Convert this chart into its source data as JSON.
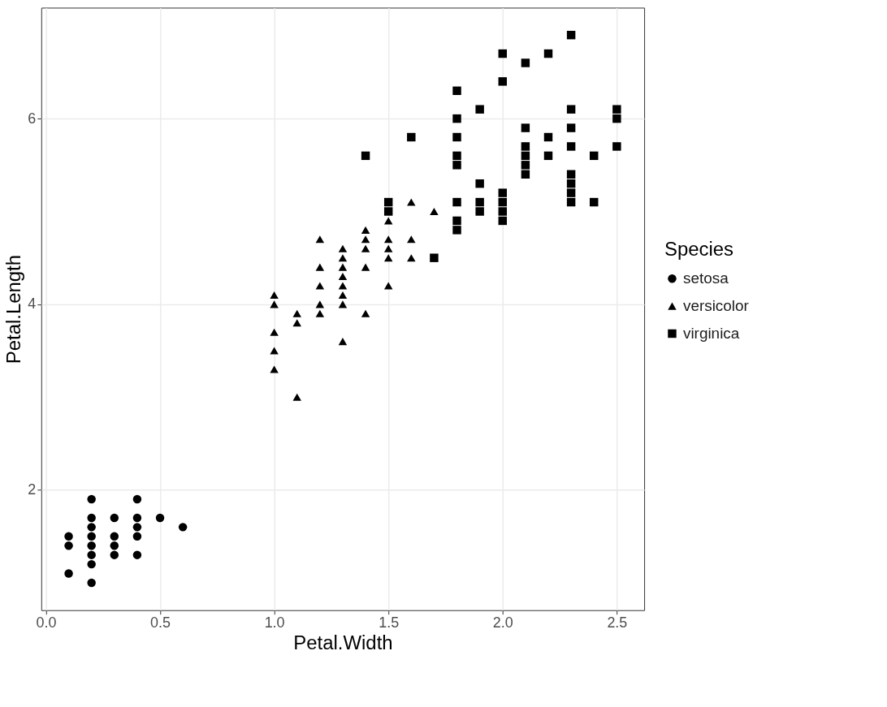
{
  "chart_data": {
    "type": "scatter",
    "xlabel": "Petal.Width",
    "ylabel": "Petal.Length",
    "legend_title": "Species",
    "legend": "right",
    "grid": true,
    "xlim": [
      -0.02,
      2.62
    ],
    "ylim": [
      0.705,
      7.195
    ],
    "xticks": [
      {
        "value": 0,
        "label": "0.0"
      },
      0.5,
      {
        "value": 1,
        "label": "1.0"
      },
      1.5,
      {
        "value": 2,
        "label": "2.0"
      },
      2.5
    ],
    "yticks": [
      2,
      4,
      6
    ],
    "series": [
      {
        "name": "setosa",
        "color": "#000000",
        "marker": "circle",
        "x": [
          0.1,
          0.1,
          0.1,
          0.2,
          0.2,
          0.2,
          0.2,
          0.2,
          0.2,
          0.2,
          0.2,
          0.3,
          0.3,
          0.3,
          0.3,
          0.4,
          0.4,
          0.4,
          0.4,
          0.4,
          0.5,
          0.6
        ],
        "values": [
          1.1,
          1.4,
          1.5,
          1.0,
          1.2,
          1.3,
          1.4,
          1.5,
          1.6,
          1.7,
          1.9,
          1.3,
          1.4,
          1.5,
          1.7,
          1.3,
          1.5,
          1.6,
          1.7,
          1.9,
          1.7,
          1.6
        ]
      },
      {
        "name": "versicolor",
        "color": "#000000",
        "marker": "triangle",
        "x": [
          1.0,
          1.0,
          1.0,
          1.0,
          1.0,
          1.1,
          1.1,
          1.1,
          1.2,
          1.2,
          1.2,
          1.2,
          1.2,
          1.3,
          1.3,
          1.3,
          1.3,
          1.3,
          1.3,
          1.3,
          1.3,
          1.4,
          1.4,
          1.4,
          1.4,
          1.4,
          1.5,
          1.5,
          1.5,
          1.5,
          1.5,
          1.6,
          1.6,
          1.6,
          1.7
        ],
        "values": [
          3.3,
          3.5,
          3.7,
          4.0,
          4.1,
          3.0,
          3.8,
          3.9,
          3.9,
          4.0,
          4.2,
          4.4,
          4.7,
          3.6,
          4.0,
          4.1,
          4.2,
          4.3,
          4.4,
          4.5,
          4.6,
          3.9,
          4.4,
          4.6,
          4.7,
          4.8,
          4.2,
          4.5,
          4.6,
          4.7,
          4.9,
          4.5,
          4.7,
          5.1,
          5.0
        ]
      },
      {
        "name": "virginica",
        "color": "#000000",
        "marker": "square",
        "x": [
          1.4,
          1.5,
          1.5,
          1.6,
          1.7,
          1.8,
          1.8,
          1.8,
          1.8,
          1.8,
          1.8,
          1.8,
          1.8,
          1.9,
          1.9,
          1.9,
          1.9,
          2.0,
          2.0,
          2.0,
          2.0,
          2.0,
          2.0,
          2.1,
          2.1,
          2.1,
          2.1,
          2.1,
          2.1,
          2.2,
          2.2,
          2.2,
          2.3,
          2.3,
          2.3,
          2.3,
          2.3,
          2.3,
          2.3,
          2.3,
          2.4,
          2.4,
          2.5,
          2.5,
          2.5
        ],
        "values": [
          5.6,
          5.0,
          5.1,
          5.8,
          4.5,
          4.8,
          4.9,
          5.1,
          5.5,
          5.6,
          5.8,
          6.0,
          6.3,
          5.0,
          5.1,
          5.3,
          6.1,
          4.9,
          5.0,
          5.1,
          5.2,
          6.4,
          6.7,
          5.4,
          5.5,
          5.6,
          5.7,
          5.9,
          6.6,
          5.6,
          5.8,
          6.7,
          5.1,
          5.2,
          5.3,
          5.4,
          5.7,
          5.9,
          6.1,
          6.9,
          5.1,
          5.6,
          5.7,
          6.0,
          6.1
        ]
      }
    ]
  }
}
